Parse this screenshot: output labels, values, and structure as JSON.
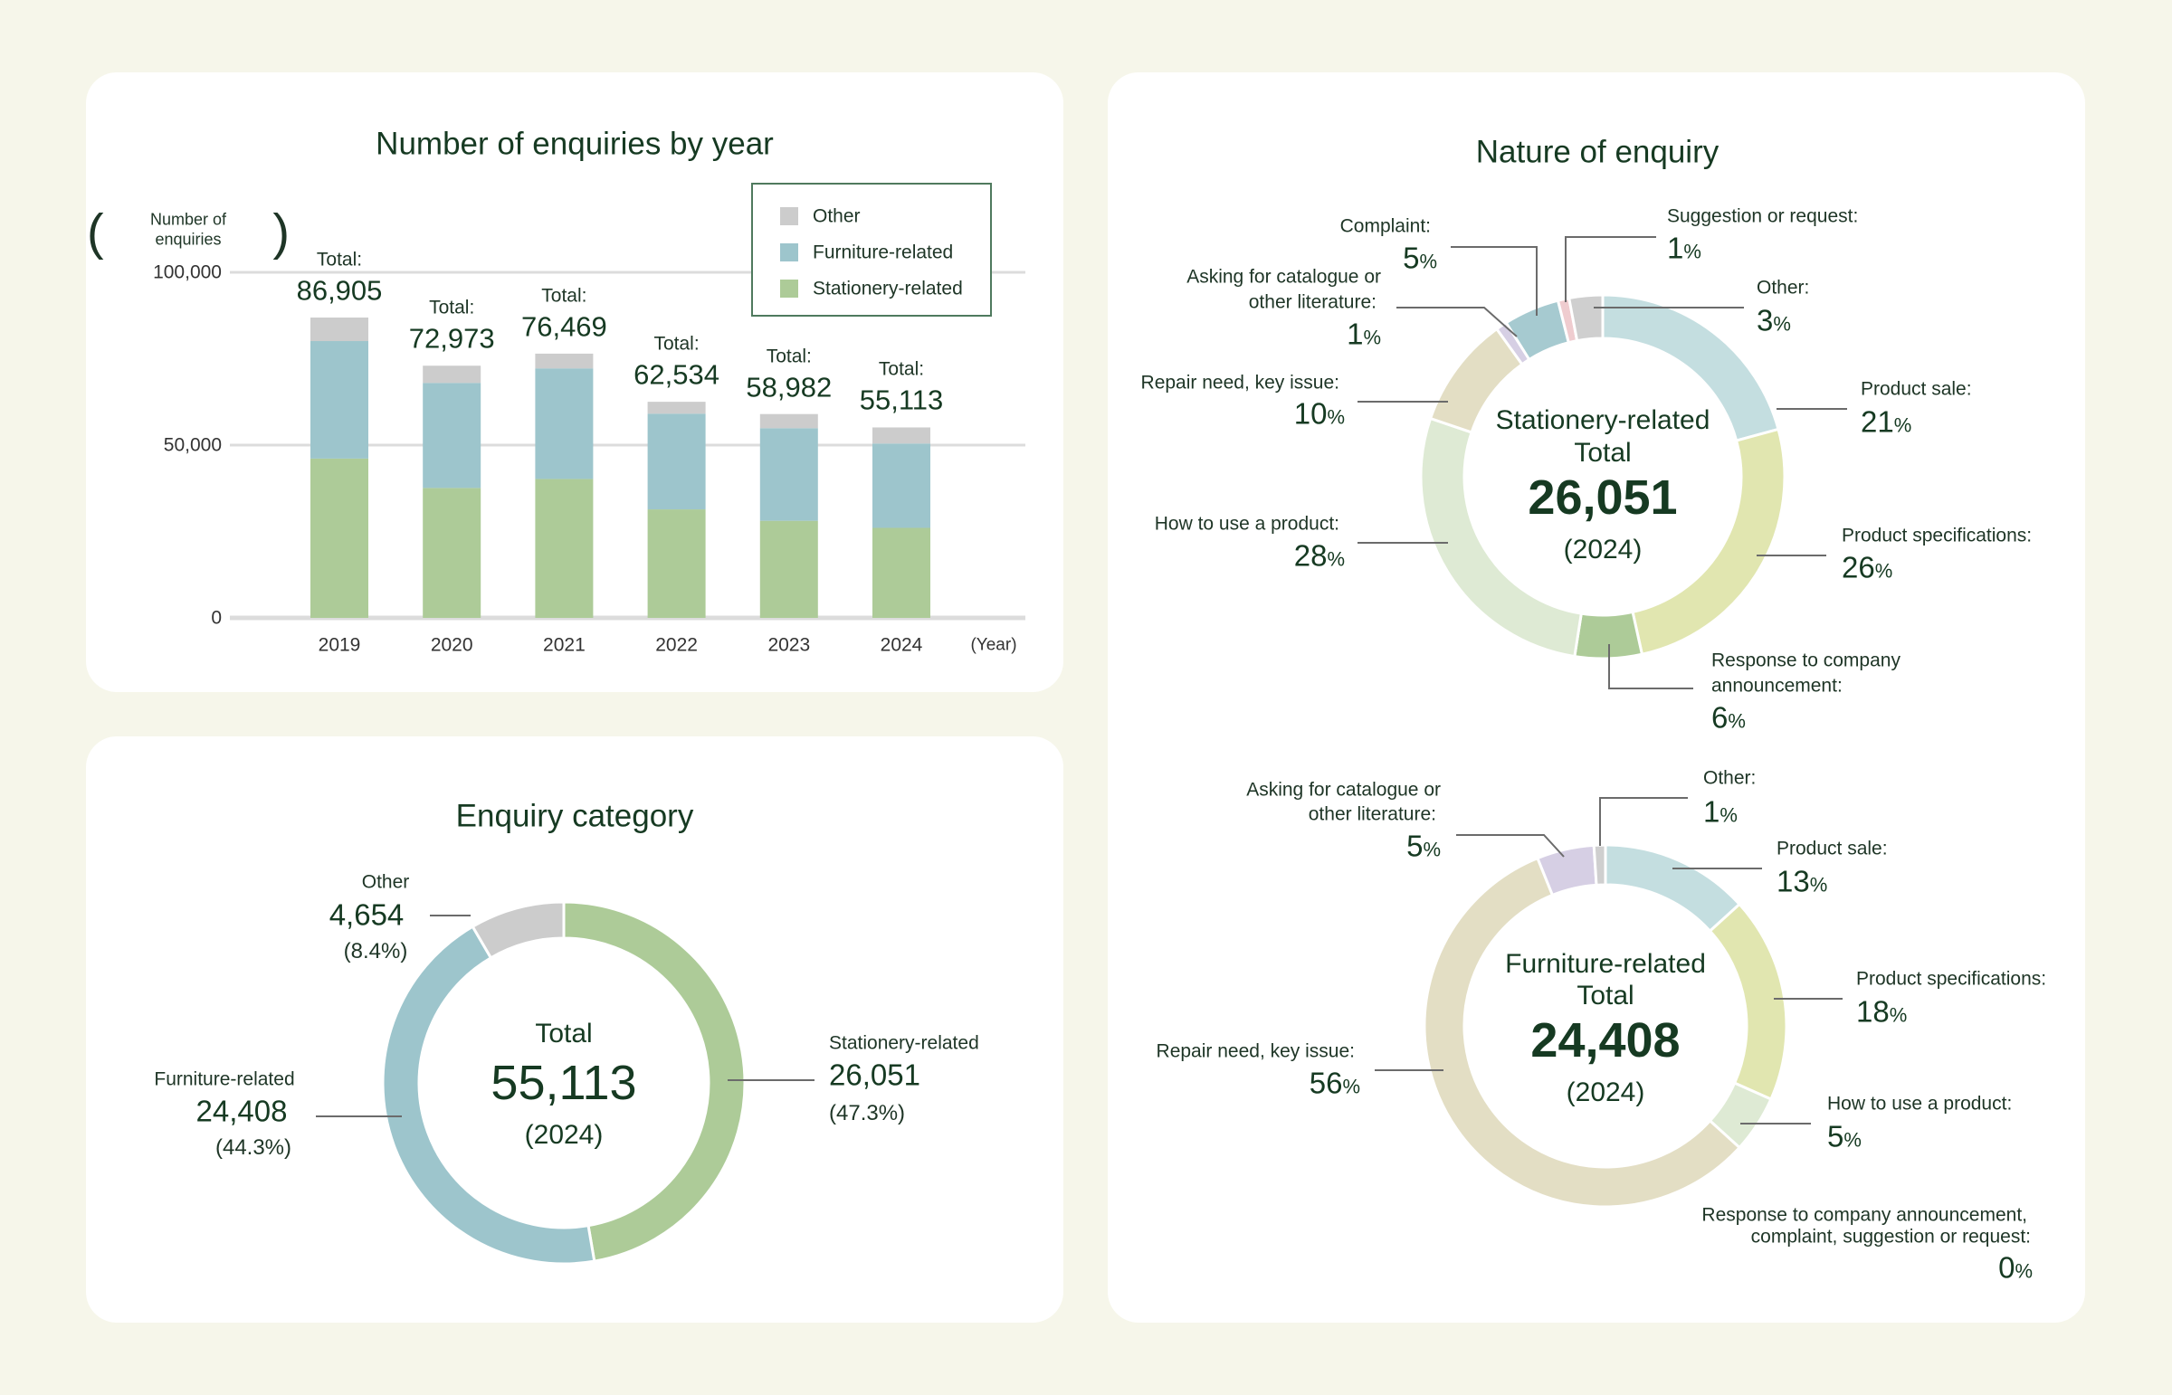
{
  "colors": {
    "text": "#163a22",
    "other": "#cccccc",
    "furniture": "#9dc5cc",
    "stationery": "#adcb98",
    "background": "#f6f6ea"
  },
  "chart_data": [
    {
      "type": "bar",
      "stacked": true,
      "title": "Number of enquiries by year",
      "ylabel": "Number of enquiries",
      "xlabel": "(Year)",
      "categories": [
        "2019",
        "2020",
        "2021",
        "2022",
        "2023",
        "2024"
      ],
      "ylim": [
        0,
        100000
      ],
      "yticks": [
        "0",
        "50,000",
        "100,000"
      ],
      "grid": true,
      "legend_position": "top-right",
      "total_prefix": "Total:",
      "totals": [
        "86,905",
        "72,973",
        "76,469",
        "62,534",
        "58,982",
        "55,113"
      ],
      "series": [
        {
          "name": "Stationery-related",
          "color": "#adcb98",
          "values": [
            46100,
            37600,
            40200,
            31400,
            28100,
            26051
          ]
        },
        {
          "name": "Furniture-related",
          "color": "#9dc5cc",
          "values": [
            34000,
            30400,
            32000,
            27700,
            26800,
            24408
          ]
        },
        {
          "name": "Other",
          "color": "#cccccc",
          "values": [
            6805,
            4973,
            4269,
            3434,
            4082,
            4654
          ]
        }
      ],
      "legend_order": [
        "Other",
        "Furniture-related",
        "Stationery-related"
      ]
    },
    {
      "type": "pie",
      "donut": true,
      "title": "Enquiry category",
      "center": {
        "label": "Total",
        "value": "55,113",
        "year": "(2024)"
      },
      "slices": [
        {
          "name": "Stationery-related",
          "value": 26051,
          "value_label": "26,051",
          "percent": 47.3,
          "percent_label": "(47.3%)",
          "color": "#adcb98"
        },
        {
          "name": "Furniture-related",
          "value": 24408,
          "value_label": "24,408",
          "percent": 44.3,
          "percent_label": "(44.3%)",
          "color": "#9dc5cc"
        },
        {
          "name": "Other",
          "value": 4654,
          "value_label": "4,654",
          "percent": 8.4,
          "percent_label": "(8.4%)",
          "color": "#cccccc"
        }
      ]
    },
    {
      "type": "pie",
      "donut": true,
      "title": "Nature of enquiry",
      "center": {
        "label1": "Stationery-related",
        "label2": "Total",
        "value": "26,051",
        "year": "(2024)"
      },
      "slices": [
        {
          "name": "Product sale:",
          "percent": 21,
          "color": "#c4dee0"
        },
        {
          "name": "Product specifications:",
          "percent": 26,
          "color": "#e1e6b0"
        },
        {
          "name": "Response to company announcement:",
          "percent": 6,
          "color": "#adcb98"
        },
        {
          "name": "How to use a product:",
          "percent": 28,
          "color": "#deead4"
        },
        {
          "name": "Repair need, key issue:",
          "percent": 10,
          "color": "#e3dec4"
        },
        {
          "name": "Asking for catalogue or other literature:",
          "percent": 1,
          "color": "#d6cfe4"
        },
        {
          "name": "Complaint:",
          "percent": 5,
          "color": "#a6cad0"
        },
        {
          "name": "Suggestion or request:",
          "percent": 1,
          "color": "#efcccf"
        },
        {
          "name": "Other:",
          "percent": 3,
          "color": "#cfcfcf"
        }
      ]
    },
    {
      "type": "pie",
      "donut": true,
      "center": {
        "label1": "Furniture-related",
        "label2": "Total",
        "value": "24,408",
        "year": "(2024)"
      },
      "slices": [
        {
          "name": "Product sale:",
          "percent": 13,
          "color": "#c4dee0"
        },
        {
          "name": "Product specifications:",
          "percent": 18,
          "color": "#e1e6b0"
        },
        {
          "name": "How to use a product:",
          "percent": 5,
          "color": "#deead4"
        },
        {
          "name": "Response to company announcement, complaint, suggestion or request:",
          "percent": 0,
          "color": "#adcb98"
        },
        {
          "name": "Repair need, key issue:",
          "percent": 56,
          "color": "#e3dec4"
        },
        {
          "name": "Asking for catalogue or other literature:",
          "percent": 5,
          "color": "#d6cfe4"
        },
        {
          "name": "Other:",
          "percent": 1,
          "color": "#cfcfcf"
        }
      ]
    }
  ],
  "labels": {
    "ylabel_line1": "Number of",
    "ylabel_line2": "enquiries",
    "asking_line1": "Asking for catalogue or",
    "asking_line2": "other literature:",
    "response_line1": "Response to company",
    "response_line2": "announcement:",
    "f_response_line1": "Response to company announcement,",
    "f_response_line2": "complaint, suggestion or request:",
    "percent_sign": "%"
  }
}
